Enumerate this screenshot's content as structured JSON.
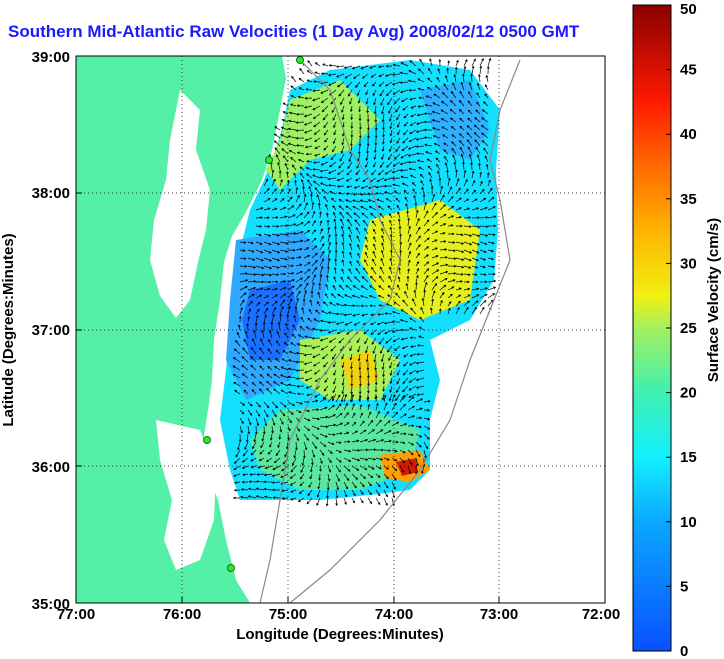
{
  "chart_data": {
    "type": "heatmap",
    "title": "Southern Mid-Atlantic Raw Velocities (1 Day Avg) 2008/02/12 0500 GMT",
    "xlabel": "Longitude (Degrees:Minutes)",
    "ylabel": "Latitude (Degrees:Minutes)",
    "colorbar_label": "Surface Velocity (cm/s)",
    "xlim": [
      -77,
      -72
    ],
    "ylim": [
      35,
      39
    ],
    "x_ticks": [
      "77:00",
      "76:00",
      "75:00",
      "74:00",
      "73:00",
      "72:00"
    ],
    "y_ticks": [
      "35:00",
      "36:00",
      "37:00",
      "38:00",
      "39:00"
    ],
    "colorbar_ticks": [
      "0",
      "5",
      "10",
      "15",
      "20",
      "25",
      "30",
      "35",
      "40",
      "45",
      "50"
    ],
    "colorbar_range": [
      0,
      50
    ],
    "grid": "dotted",
    "land_color": "#55f0a8",
    "field_regions": [
      {
        "lon": -74.5,
        "lat": 37.8,
        "speed": 14
      },
      {
        "lon": -73.9,
        "lat": 37.5,
        "speed": 26
      },
      {
        "lon": -74.8,
        "lat": 36.6,
        "speed": 21
      },
      {
        "lon": -75.2,
        "lat": 36.9,
        "speed": 5
      },
      {
        "lon": -73.9,
        "lat": 36.0,
        "speed": 38
      }
    ]
  }
}
